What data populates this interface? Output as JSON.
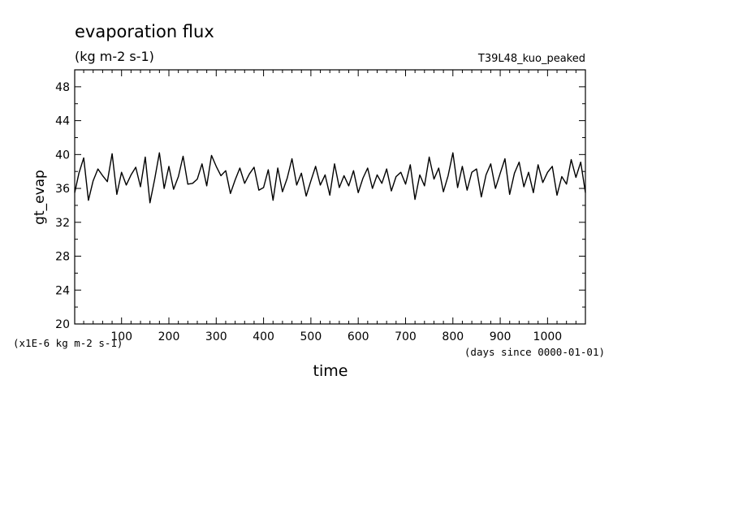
{
  "chart_data": {
    "type": "line",
    "title": "evaporation flux",
    "subtitle": "(kg m-2 s-1)",
    "run_label": "T39L48_kuo_peaked",
    "xlabel": "time",
    "ylabel": "gt_evap",
    "y_unit_note": "(x1E-6 kg m-2 s-1)",
    "x_unit_note": "(days since 0000-01-01)",
    "xlim": [
      1,
      1080
    ],
    "ylim": [
      20,
      50
    ],
    "x_ticks": [
      100,
      200,
      300,
      400,
      500,
      600,
      700,
      800,
      900,
      1000
    ],
    "y_ticks": [
      20,
      24,
      28,
      32,
      36,
      40,
      44,
      48
    ],
    "grid": false,
    "legend": "none",
    "line_color": "#000000",
    "series": [
      {
        "x": [
          1,
          10,
          20,
          30,
          40,
          50,
          60,
          70,
          80,
          90,
          100,
          110,
          120,
          130,
          140,
          150,
          160,
          170,
          180,
          190,
          200,
          210,
          220,
          230,
          240,
          250,
          260,
          270,
          280,
          290,
          300,
          310,
          320,
          330,
          340,
          350,
          360,
          370,
          380,
          390,
          400,
          410,
          420,
          430,
          440,
          450,
          460,
          470,
          480,
          490,
          500,
          510,
          520,
          530,
          540,
          550,
          560,
          570,
          580,
          590,
          600,
          610,
          620,
          630,
          640,
          650,
          660,
          670,
          680,
          690,
          700,
          710,
          720,
          730,
          740,
          750,
          760,
          770,
          780,
          790,
          800,
          810,
          820,
          830,
          840,
          850,
          860,
          870,
          880,
          890,
          900,
          910,
          920,
          930,
          940,
          950,
          960,
          970,
          980,
          990,
          1000,
          1010,
          1020,
          1030,
          1040,
          1050,
          1060,
          1070,
          1080
        ],
        "y": [
          35.5,
          37.8,
          39.6,
          34.6,
          36.9,
          38.3,
          37.5,
          36.8,
          40.1,
          35.3,
          37.9,
          36.4,
          37.6,
          38.5,
          36.2,
          39.7,
          34.3,
          37.1,
          40.2,
          36.0,
          38.6,
          35.9,
          37.4,
          39.8,
          36.5,
          36.6,
          37.1,
          38.9,
          36.3,
          39.9,
          38.6,
          37.5,
          38.1,
          35.4,
          37.0,
          38.4,
          36.6,
          37.7,
          38.5,
          35.8,
          36.1,
          38.2,
          34.6,
          38.4,
          35.6,
          37.2,
          39.5,
          36.4,
          37.8,
          35.1,
          36.9,
          38.6,
          36.4,
          37.6,
          35.2,
          38.9,
          36.1,
          37.5,
          36.3,
          38.1,
          35.5,
          37.2,
          38.4,
          36.0,
          37.6,
          36.6,
          38.3,
          35.7,
          37.4,
          37.9,
          36.5,
          38.8,
          34.7,
          37.6,
          36.3,
          39.7,
          37.1,
          38.4,
          35.6,
          37.5,
          40.2,
          36.1,
          38.6,
          35.8,
          37.9,
          38.3,
          35.0,
          37.6,
          38.9,
          36.0,
          37.8,
          39.5,
          35.3,
          37.8,
          39.1,
          36.2,
          37.9,
          35.5,
          38.8,
          36.7,
          37.9,
          38.6,
          35.2,
          37.4,
          36.5,
          39.4,
          37.3,
          39.1,
          35.5
        ]
      }
    ]
  }
}
